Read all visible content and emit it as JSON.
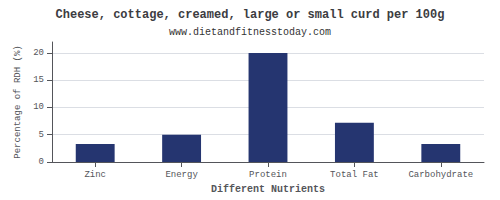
{
  "chart_data": {
    "type": "bar",
    "title": "Cheese, cottage, creamed, large or small curd per 100g",
    "subtitle": "www.dietandfitnesstoday.com",
    "xlabel": "Different Nutrients",
    "ylabel": "Percentage of RDH (%)",
    "categories": [
      "Zinc",
      "Energy",
      "Protein",
      "Total Fat",
      "Carbohydrate"
    ],
    "values": [
      3.3,
      5.0,
      20.0,
      7.2,
      3.3
    ],
    "color": "#253570",
    "ylim": [
      0,
      22
    ],
    "yticks": [
      0,
      5,
      10,
      15,
      20
    ],
    "grid": true
  }
}
